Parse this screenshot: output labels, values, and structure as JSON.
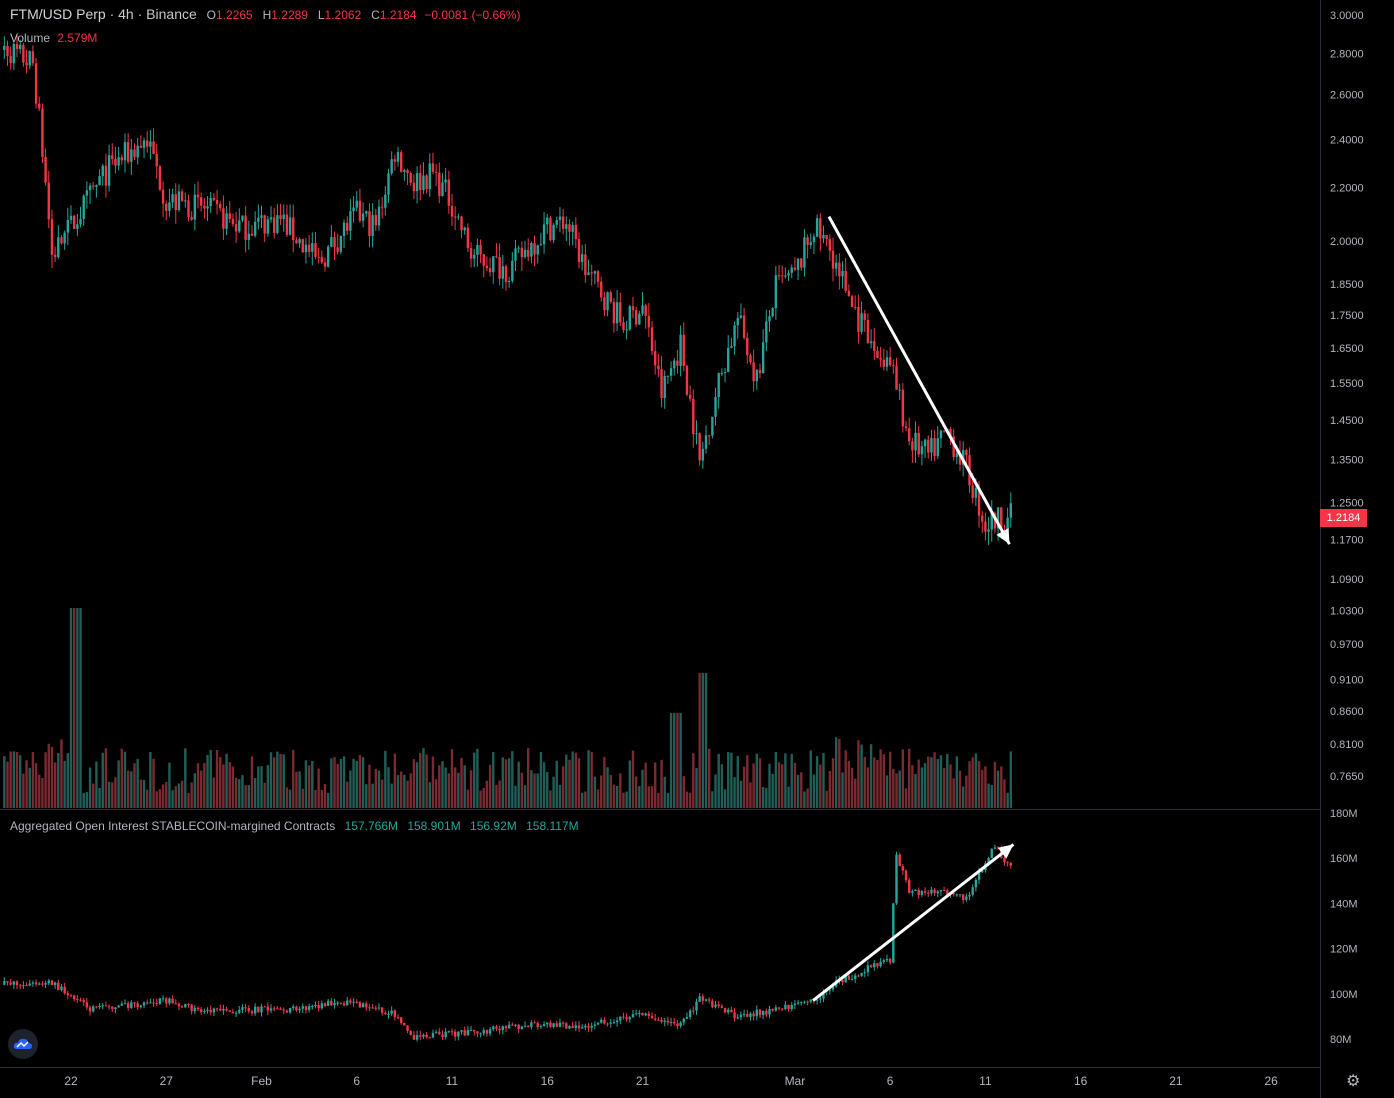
{
  "header": {
    "symbol": "FTM/USD Perp",
    "sep1": "·",
    "interval": "4h",
    "sep2": "·",
    "exchange": "Binance",
    "open_label": "O",
    "open": "1.2265",
    "high_label": "H",
    "high": "1.2289",
    "low_label": "L",
    "low": "1.2062",
    "close_label": "C",
    "close": "1.2184",
    "change": "−0.0081 (−0.66%)"
  },
  "volume_indicator": {
    "label": "Volume",
    "value": "2.579M"
  },
  "oi_indicator": {
    "label": "Aggregated Open Interest STABLECOIN-margined Contracts",
    "o": "157.766M",
    "h": "158.901M",
    "l": "156.92M",
    "c": "158.117M"
  },
  "colors": {
    "up": "#26a69a",
    "down": "#f23645",
    "background": "#000000",
    "axis_text": "#b2b5be",
    "arrow": "#ffffff"
  },
  "icons": {
    "logo": "tradingview-cloud-icon",
    "settings": "gear-icon"
  },
  "chart_data": [
    {
      "type": "candlestick",
      "title": "FTM/USD Perp · 4h · Binance",
      "price_scale": "log",
      "y_ticks": [
        "3.0000",
        "2.8000",
        "2.6000",
        "2.4000",
        "2.2000",
        "2.0000",
        "1.8500",
        "1.7500",
        "1.6500",
        "1.5500",
        "1.4500",
        "1.3500",
        "1.2500",
        "1.1700",
        "1.0900",
        "1.0300",
        "0.9700",
        "0.9100",
        "0.8600",
        "0.8100",
        "0.7650"
      ],
      "x_ticks": [
        "22",
        "27",
        "Feb",
        "6",
        "11",
        "16",
        "21",
        "Mar",
        "6",
        "11",
        "16",
        "21",
        "26"
      ],
      "last_price": "1.2184",
      "close_anchors": [
        [
          "Jan 18",
          2.86
        ],
        [
          "Jan 20",
          2.75
        ],
        [
          "Jan 21",
          1.95
        ],
        [
          "Jan 22",
          2.05
        ],
        [
          "Jan 24",
          2.28
        ],
        [
          "Jan 26",
          2.4
        ],
        [
          "Jan 27",
          2.15
        ],
        [
          "Jan 29",
          2.12
        ],
        [
          "Jan 31",
          2.05
        ],
        [
          "Feb 2",
          2.08
        ],
        [
          "Feb 4",
          1.92
        ],
        [
          "Feb 6",
          2.1
        ],
        [
          "Feb 7",
          2.05
        ],
        [
          "Feb 8",
          2.35
        ],
        [
          "Feb 9",
          2.22
        ],
        [
          "Feb 10",
          2.26
        ],
        [
          "Feb 11",
          2.14
        ],
        [
          "Feb 12",
          1.95
        ],
        [
          "Feb 14",
          1.9
        ],
        [
          "Feb 16",
          2.05
        ],
        [
          "Feb 17",
          2.07
        ],
        [
          "Feb 18",
          1.9
        ],
        [
          "Feb 20",
          1.72
        ],
        [
          "Feb 21",
          1.78
        ],
        [
          "Feb 22",
          1.52
        ],
        [
          "Feb 23",
          1.66
        ],
        [
          "Feb 24",
          1.34
        ],
        [
          "Feb 25",
          1.55
        ],
        [
          "Feb 26",
          1.74
        ],
        [
          "Feb 27",
          1.56
        ],
        [
          "Feb 28",
          1.84
        ],
        [
          "Mar 1",
          1.88
        ],
        [
          "Mar 2",
          2.05
        ],
        [
          "Mar 3",
          1.95
        ],
        [
          "Mar 4",
          1.78
        ],
        [
          "Mar 5",
          1.65
        ],
        [
          "Mar 6",
          1.6
        ],
        [
          "Mar 7",
          1.4
        ],
        [
          "Mar 8",
          1.36
        ],
        [
          "Mar 9",
          1.42
        ],
        [
          "Mar 10",
          1.33
        ],
        [
          "Mar 11",
          1.2
        ],
        [
          "Mar 12",
          1.22
        ]
      ],
      "annotations": [
        {
          "type": "arrow",
          "from": [
            "Mar 2",
            2.07
          ],
          "to": [
            "Mar 12",
            1.16
          ]
        }
      ]
    },
    {
      "type": "bar",
      "title": "Volume",
      "last_value": "2.579M"
    },
    {
      "type": "candlestick",
      "title": "Aggregated Open Interest STABLECOIN-margined Contracts",
      "y_ticks": [
        "180M",
        "160M",
        "140M",
        "120M",
        "100M",
        "80M"
      ],
      "y_values": [
        180,
        160,
        140,
        120,
        100,
        80
      ],
      "unit": "M",
      "close_anchors": [
        [
          "Jan 18",
          104
        ],
        [
          "Jan 21",
          105
        ],
        [
          "Jan 23",
          93
        ],
        [
          "Jan 25",
          95
        ],
        [
          "Jan 27",
          97
        ],
        [
          "Jan 29",
          92
        ],
        [
          "Feb 1",
          93
        ],
        [
          "Feb 3",
          93
        ],
        [
          "Feb 5",
          97
        ],
        [
          "Feb 8",
          91
        ],
        [
          "Feb 9",
          81
        ],
        [
          "Feb 12",
          83
        ],
        [
          "Feb 15",
          86
        ],
        [
          "Feb 18",
          86
        ],
        [
          "Feb 21",
          91
        ],
        [
          "Feb 23",
          86
        ],
        [
          "Feb 24",
          98
        ],
        [
          "Feb 26",
          90
        ],
        [
          "Feb 28",
          93
        ],
        [
          "Mar 2",
          97
        ],
        [
          "Mar 3",
          104
        ],
        [
          "Mar 5",
          112
        ],
        [
          "Mar 6",
          115
        ],
        [
          "Mar 6.3",
          162
        ],
        [
          "Mar 7",
          145
        ],
        [
          "Mar 9",
          145
        ],
        [
          "Mar 10",
          142
        ],
        [
          "Mar 11",
          158
        ],
        [
          "Mar 11.5",
          166
        ],
        [
          "Mar 12",
          158
        ]
      ],
      "annotations": [
        {
          "type": "arrow",
          "from": [
            "Mar 3",
            97
          ],
          "to": [
            "Mar 12",
            167
          ]
        }
      ]
    }
  ]
}
